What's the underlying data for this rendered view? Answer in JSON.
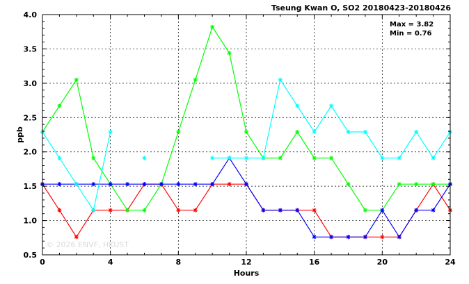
{
  "chart_data": {
    "type": "line",
    "title": "Tseung Kwan O, SO2 20180423-20180426",
    "xlabel": "Hours",
    "ylabel": "ppb",
    "xlim": [
      0,
      24
    ],
    "ylim": [
      0.5,
      4.0
    ],
    "x_ticks": [
      0,
      4,
      8,
      12,
      16,
      20,
      24
    ],
    "y_ticks": [
      0.5,
      1.0,
      1.5,
      2.0,
      2.5,
      3.0,
      3.5,
      4.0
    ],
    "grid": true,
    "stats": {
      "max": "Max = 3.82",
      "min": "Min = 0.76"
    },
    "watermark": "© 2026 ENVF, HKUST",
    "x": [
      0,
      1,
      2,
      3,
      4,
      5,
      6,
      7,
      8,
      9,
      10,
      11,
      12,
      13,
      14,
      15,
      16,
      17,
      18,
      19,
      20,
      21,
      22,
      23,
      24
    ],
    "series": [
      {
        "color": "#ff0000",
        "values": [
          1.53,
          1.15,
          0.76,
          1.15,
          1.15,
          1.15,
          1.53,
          1.53,
          1.15,
          1.15,
          1.53,
          1.53,
          1.53,
          1.15,
          1.15,
          1.15,
          1.15,
          0.76,
          0.76,
          0.76,
          0.76,
          0.76,
          1.15,
          1.53,
          1.15
        ]
      },
      {
        "color": "#00ff00",
        "values": [
          2.29,
          2.67,
          3.05,
          1.91,
          1.53,
          1.15,
          1.15,
          1.53,
          2.29,
          3.05,
          3.82,
          3.44,
          2.29,
          1.91,
          1.91,
          2.29,
          1.91,
          1.91,
          1.53,
          1.15,
          1.15,
          1.53,
          1.53,
          1.53,
          1.53
        ]
      },
      {
        "color": "#0000ff",
        "values": [
          1.53,
          1.53,
          1.53,
          1.53,
          1.53,
          1.53,
          1.53,
          1.53,
          1.53,
          1.53,
          1.53,
          1.91,
          1.53,
          1.15,
          1.15,
          1.15,
          0.76,
          0.76,
          0.76,
          0.76,
          1.15,
          0.76,
          1.15,
          1.15,
          1.53
        ]
      },
      {
        "color": "#00ffff",
        "values": [
          2.29,
          1.91,
          1.53,
          1.15,
          2.29,
          null,
          1.91,
          null,
          null,
          null,
          1.91,
          1.91,
          1.91,
          1.91,
          3.05,
          2.67,
          2.29,
          2.67,
          2.29,
          2.29,
          1.91,
          1.91,
          2.29,
          1.91,
          2.29
        ]
      }
    ]
  }
}
